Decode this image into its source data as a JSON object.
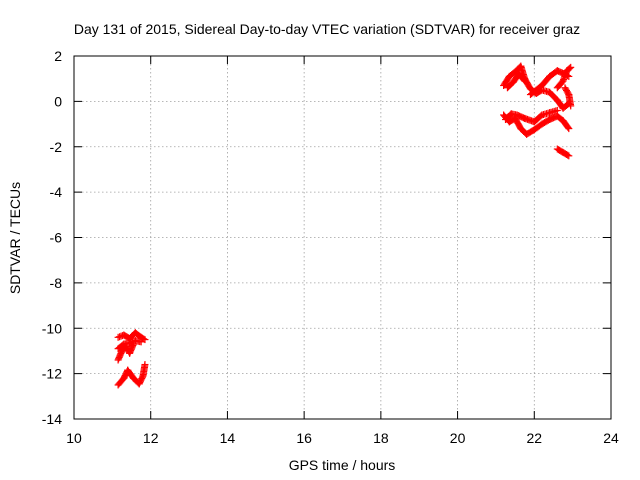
{
  "chart_data": {
    "type": "scatter",
    "title": "Day 131 of 2015, Sidereal Day-to-day VTEC variation (SDTVAR) for receiver graz",
    "xlabel": "GPS time / hours",
    "ylabel": "SDTVAR / TECUs",
    "xlim": [
      10,
      24
    ],
    "ylim": [
      -14,
      2
    ],
    "x_ticks": [
      10,
      12,
      14,
      16,
      18,
      20,
      22,
      24
    ],
    "y_ticks": [
      -14,
      -12,
      -10,
      -8,
      -6,
      -4,
      -2,
      0,
      2
    ],
    "grid": true,
    "marker": "+",
    "colors": {
      "points": "#ff0000"
    },
    "series": [
      {
        "segments": [
          [
            [
              11.15,
              -10.4
            ],
            [
              11.3,
              -10.3
            ],
            [
              11.45,
              -10.45
            ],
            [
              11.6,
              -10.2
            ],
            [
              11.75,
              -10.4
            ],
            [
              11.85,
              -10.5
            ]
          ],
          [
            [
              11.15,
              -10.9
            ],
            [
              11.3,
              -10.7
            ],
            [
              11.45,
              -10.65
            ],
            [
              11.6,
              -10.55
            ],
            [
              11.75,
              -10.6
            ]
          ],
          [
            [
              11.15,
              -11.4
            ],
            [
              11.25,
              -11.0
            ],
            [
              11.35,
              -10.8
            ],
            [
              11.45,
              -11.1
            ],
            [
              11.55,
              -10.7
            ]
          ],
          [
            [
              11.15,
              -12.5
            ],
            [
              11.3,
              -12.2
            ],
            [
              11.4,
              -11.85
            ],
            [
              11.55,
              -12.2
            ],
            [
              11.7,
              -12.45
            ],
            [
              11.8,
              -12.1
            ],
            [
              11.85,
              -11.6
            ]
          ],
          [
            [
              21.2,
              0.7
            ],
            [
              21.35,
              1.1
            ],
            [
              21.5,
              1.3
            ],
            [
              21.65,
              1.55
            ],
            [
              21.75,
              1.0
            ],
            [
              21.9,
              0.55
            ],
            [
              22.05,
              0.35
            ],
            [
              22.2,
              0.5
            ],
            [
              22.4,
              0.4
            ],
            [
              22.6,
              0.05
            ],
            [
              22.75,
              -0.3
            ],
            [
              22.9,
              -0.1
            ]
          ],
          [
            [
              21.3,
              0.6
            ],
            [
              21.45,
              0.85
            ],
            [
              21.6,
              1.2
            ],
            [
              21.75,
              0.9
            ]
          ],
          [
            [
              21.9,
              0.3
            ],
            [
              22.05,
              0.5
            ],
            [
              22.2,
              0.7
            ],
            [
              22.4,
              1.1
            ],
            [
              22.6,
              1.35
            ],
            [
              22.8,
              1.2
            ],
            [
              22.9,
              1.1
            ]
          ],
          [
            [
              22.6,
              0.6
            ],
            [
              22.75,
              0.9
            ],
            [
              22.85,
              1.35
            ],
            [
              22.95,
              1.5
            ]
          ],
          [
            [
              22.8,
              0.6
            ],
            [
              22.9,
              0.3
            ],
            [
              22.95,
              -0.2
            ]
          ],
          [
            [
              21.2,
              -0.6
            ],
            [
              21.35,
              -0.9
            ],
            [
              21.5,
              -0.75
            ],
            [
              21.65,
              -1.2
            ],
            [
              21.8,
              -1.45
            ],
            [
              22.0,
              -1.25
            ],
            [
              22.2,
              -1.0
            ],
            [
              22.4,
              -0.8
            ],
            [
              22.6,
              -0.65
            ],
            [
              22.75,
              -0.85
            ],
            [
              22.9,
              -1.2
            ]
          ],
          [
            [
              21.25,
              -0.8
            ],
            [
              21.4,
              -0.55
            ],
            [
              21.55,
              -0.6
            ],
            [
              21.75,
              -0.75
            ],
            [
              22.0,
              -0.9
            ],
            [
              22.2,
              -0.6
            ],
            [
              22.4,
              -0.5
            ],
            [
              22.6,
              -0.4
            ]
          ],
          [
            [
              22.6,
              -2.1
            ],
            [
              22.75,
              -2.25
            ],
            [
              22.9,
              -2.4
            ]
          ]
        ]
      }
    ]
  }
}
